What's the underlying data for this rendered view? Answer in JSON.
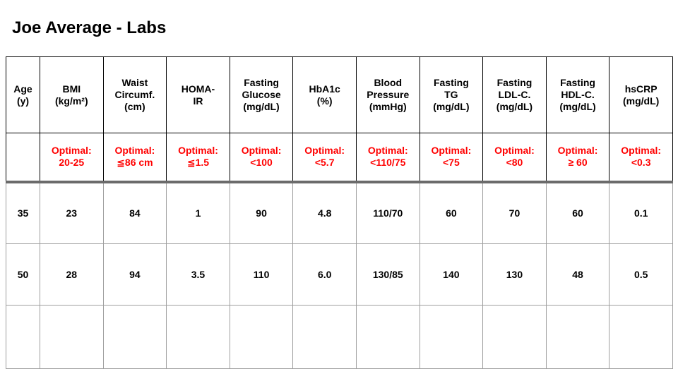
{
  "slide": {
    "title": "Joe Average - Labs"
  },
  "table": {
    "headers": [
      "Age\n(y)",
      "BMI\n(kg/m²)",
      "Waist\nCircumf.\n(cm)",
      "HOMA-\nIR",
      "Fasting\nGlucose\n(mg/dL)",
      "HbA1c\n(%)",
      "Blood\nPressure\n(mmHg)",
      "Fasting\nTG\n(mg/dL)",
      "Fasting\nLDL-C.\n(mg/dL)",
      "Fasting\nHDL-C.\n(mg/dL)",
      "hsCRP\n(mg/dL)"
    ],
    "optimal_row": [
      "",
      "Optimal:\n20-25",
      "Optimal:\n≦86 cm",
      "Optimal:\n≦1.5",
      "Optimal:\n<100",
      "Optimal:\n<5.7",
      "Optimal:\n<110/75",
      "Optimal:\n<75",
      "Optimal:\n<80",
      "Optimal:\n≥ 60",
      "Optimal:\n<0.3"
    ],
    "data_rows": [
      [
        "35",
        "23",
        "84",
        "1",
        "90",
        "4.8",
        "110/70",
        "60",
        "70",
        "60",
        "0.1"
      ],
      [
        "50",
        "28",
        "94",
        "3.5",
        "110",
        "6.0",
        "130/85",
        "140",
        "130",
        "48",
        "0.5"
      ],
      [
        "",
        "",
        "",
        "",
        "",
        "",
        "",
        "",
        "",
        "",
        ""
      ]
    ]
  },
  "colors": {
    "optimal_text": "#ff0000",
    "header_border": "#000000",
    "body_border": "#9e9e9e",
    "separator": "#6b6b6b"
  }
}
